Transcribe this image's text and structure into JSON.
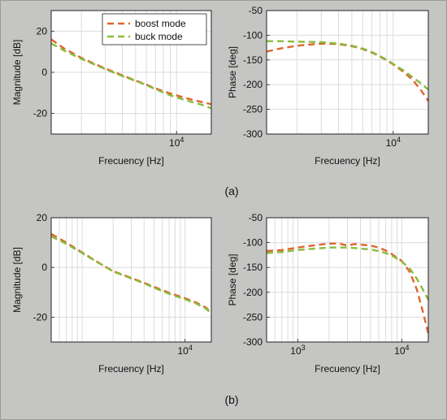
{
  "figure": {
    "label_a": "(a)",
    "label_b": "(b)"
  },
  "colors": {
    "boost": "#e0642e",
    "buck": "#88bc3c",
    "plot_bg": "#ffffff",
    "figure_bg": "#c5c5c4"
  },
  "chart_data": [
    {
      "id": "a-mag",
      "type": "line",
      "xscale": "log",
      "xlim": [
        1200,
        18000
      ],
      "ylim": [
        -30,
        30
      ],
      "yticks": [
        -20,
        0,
        20
      ],
      "xtick_labels": [
        {
          "value": 10000,
          "label": "10^4"
        }
      ],
      "xlabel": "Frecuency [Hz]",
      "ylabel": "Magnitude  [dB]",
      "legend": {
        "position": "top-right",
        "entries": [
          "boost mode",
          "buck mode"
        ]
      },
      "series": [
        {
          "name": "boost mode",
          "color_key": "boost",
          "x": [
            1200,
            1500,
            2000,
            3000,
            4000,
            5000,
            6000,
            7000,
            8000,
            9000,
            10000,
            12000,
            15000,
            18000
          ],
          "y": [
            16,
            11.5,
            7,
            1.8,
            -1.5,
            -4,
            -6,
            -7.8,
            -9.2,
            -10.3,
            -11.2,
            -12.7,
            -14.3,
            -15.5
          ]
        },
        {
          "name": "buck mode",
          "color_key": "buck",
          "x": [
            1200,
            1500,
            2000,
            3000,
            4000,
            5000,
            6000,
            7000,
            8000,
            9000,
            10000,
            12000,
            15000,
            18000
          ],
          "y": [
            14,
            10.5,
            6.5,
            1.5,
            -1.8,
            -4.2,
            -6.2,
            -8.2,
            -9.8,
            -11.2,
            -12.2,
            -13.8,
            -15.6,
            -17.5
          ]
        }
      ]
    },
    {
      "id": "a-phase",
      "type": "line",
      "xscale": "log",
      "xlim": [
        1200,
        18000
      ],
      "ylim": [
        -300,
        -50
      ],
      "yticks": [
        -300,
        -250,
        -200,
        -150,
        -100,
        -50
      ],
      "xtick_labels": [
        {
          "value": 10000,
          "label": "10^4"
        }
      ],
      "xlabel": "Frecuency [Hz]",
      "ylabel": "Phase  [deg]",
      "series": [
        {
          "name": "boost mode",
          "color_key": "boost",
          "x": [
            1200,
            1500,
            2000,
            3000,
            4000,
            5000,
            6000,
            7000,
            8000,
            9000,
            10000,
            12000,
            14000,
            16000,
            18000
          ],
          "y": [
            -133,
            -127,
            -121,
            -117,
            -118,
            -122,
            -128,
            -135,
            -143,
            -151,
            -159,
            -175,
            -192,
            -212,
            -233
          ]
        },
        {
          "name": "buck mode",
          "color_key": "buck",
          "x": [
            1200,
            1500,
            2000,
            3000,
            4000,
            5000,
            6000,
            7000,
            8000,
            9000,
            10000,
            12000,
            14000,
            16000,
            18000
          ],
          "y": [
            -112,
            -112,
            -113,
            -114,
            -117,
            -121,
            -127,
            -134,
            -142,
            -150,
            -158,
            -172,
            -186,
            -198,
            -210
          ]
        }
      ]
    },
    {
      "id": "b-mag",
      "type": "line",
      "xscale": "log",
      "xlim": [
        500,
        18000
      ],
      "ylim": [
        -30,
        20
      ],
      "yticks": [
        -20,
        0,
        20
      ],
      "xtick_labels": [
        {
          "value": 10000,
          "label": "10^4"
        }
      ],
      "xlabel": "Frecuency [Hz]",
      "ylabel": "Magnitude  [dB]",
      "series": [
        {
          "name": "boost mode",
          "color_key": "boost",
          "x": [
            500,
            700,
            1000,
            1500,
            2000,
            3000,
            4000,
            5000,
            7000,
            10000,
            13000,
            16000,
            18000
          ],
          "y": [
            13.5,
            10,
            6,
            1.5,
            -1.5,
            -4.2,
            -6.2,
            -7.8,
            -10.2,
            -12.4,
            -14.2,
            -16.2,
            -18
          ]
        },
        {
          "name": "buck mode",
          "color_key": "buck",
          "x": [
            500,
            700,
            1000,
            1500,
            2000,
            3000,
            4000,
            5000,
            7000,
            10000,
            13000,
            16000,
            18000
          ],
          "y": [
            12.5,
            9.5,
            5.8,
            1.4,
            -1.6,
            -4.4,
            -6.4,
            -8.2,
            -10.6,
            -12.8,
            -14.6,
            -16.6,
            -18.5
          ]
        }
      ]
    },
    {
      "id": "b-phase",
      "type": "line",
      "xscale": "log",
      "xlim": [
        500,
        18000
      ],
      "ylim": [
        -300,
        -50
      ],
      "yticks": [
        -300,
        -250,
        -200,
        -150,
        -100,
        -50
      ],
      "xtick_labels": [
        {
          "value": 1000,
          "label": "10^3"
        },
        {
          "value": 10000,
          "label": "10^4"
        }
      ],
      "xlabel": "Frecuency [Hz]",
      "ylabel": "Phase  [deg]",
      "series": [
        {
          "name": "boost mode",
          "color_key": "boost",
          "x": [
            500,
            700,
            1000,
            1500,
            2000,
            2500,
            3000,
            3500,
            4000,
            5000,
            6000,
            7000,
            8000,
            10000,
            12000,
            14000,
            16000,
            18000
          ],
          "y": [
            -117,
            -115,
            -110,
            -105,
            -102,
            -102,
            -106,
            -103,
            -104,
            -106,
            -110,
            -116,
            -123,
            -137,
            -160,
            -195,
            -240,
            -283
          ]
        },
        {
          "name": "buck mode",
          "color_key": "buck",
          "x": [
            500,
            700,
            1000,
            1500,
            2000,
            2500,
            3000,
            3500,
            4000,
            5000,
            6000,
            7000,
            8000,
            10000,
            12000,
            14000,
            16000,
            18000
          ],
          "y": [
            -121,
            -119,
            -115,
            -112,
            -110,
            -110,
            -110,
            -111,
            -112,
            -114,
            -117,
            -121,
            -126,
            -138,
            -153,
            -173,
            -195,
            -215
          ]
        }
      ]
    }
  ]
}
